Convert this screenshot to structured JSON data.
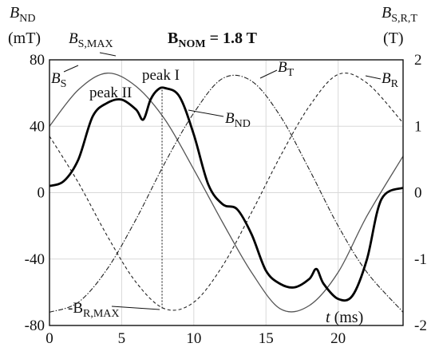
{
  "chart_data": {
    "type": "line",
    "title": {
      "main": "B",
      "sub": "NOM",
      "rest": " = 1.8 T"
    },
    "y_left_label": {
      "main": "B",
      "sub": "ND",
      "unit": "(mT)"
    },
    "y_right_label": {
      "main": "B",
      "sub": "S,R,T",
      "unit": "(T)"
    },
    "x_label": {
      "main": "t",
      "unit": " (ms)"
    },
    "x_range": [
      0,
      24.5
    ],
    "y_left_range": [
      -80,
      80
    ],
    "y_right_range": [
      -2,
      2
    ],
    "x_ticks": [
      0,
      5,
      10,
      15,
      20
    ],
    "y_left_ticks": [
      80,
      40,
      0,
      -40,
      -80
    ],
    "y_right_ticks": [
      2,
      1,
      0,
      -1,
      -2
    ],
    "grid": true,
    "series": [
      {
        "name": "B_S",
        "axis": "right",
        "style": "thin-solid",
        "x": [
          0,
          2,
          4,
          6,
          8,
          10,
          12,
          14,
          16,
          18,
          20,
          22,
          24.5
        ],
        "y": [
          1.0,
          1.55,
          1.8,
          1.6,
          1.1,
          0.35,
          -0.45,
          -1.2,
          -1.75,
          -1.7,
          -1.2,
          -0.35,
          0.55
        ]
      },
      {
        "name": "B_T",
        "axis": "right",
        "style": "dashed",
        "x": [
          0,
          2,
          4,
          6,
          8,
          10,
          12,
          14,
          16,
          18,
          20,
          22,
          24.5
        ],
        "y": [
          0.85,
          0.15,
          -0.65,
          -1.35,
          -1.75,
          -1.65,
          -1.1,
          -0.3,
          0.55,
          1.3,
          1.78,
          1.65,
          1.05
        ]
      },
      {
        "name": "B_R",
        "axis": "right",
        "style": "dash-dot",
        "x": [
          0,
          2,
          4,
          6,
          8,
          10,
          12,
          14,
          16,
          18,
          20,
          22,
          24.5
        ],
        "y": [
          -1.8,
          -1.65,
          -1.15,
          -0.4,
          0.45,
          1.2,
          1.72,
          1.68,
          1.15,
          0.35,
          -0.5,
          -1.2,
          -1.8
        ]
      },
      {
        "name": "B_ND",
        "axis": "left",
        "style": "thick-solid",
        "x": [
          0,
          1,
          2,
          3,
          4,
          5,
          6,
          6.5,
          7,
          7.5,
          8,
          9,
          10,
          11,
          12,
          13,
          14,
          15,
          16,
          17,
          18,
          18.5,
          19,
          20,
          21,
          22,
          23,
          24.5
        ],
        "y": [
          4,
          7,
          20,
          46,
          54,
          56,
          50,
          44,
          56,
          62,
          63,
          58,
          35,
          5,
          -7,
          -10,
          -25,
          -47,
          -55,
          -57,
          -52,
          -46,
          -55,
          -64,
          -62,
          -40,
          -4,
          3
        ]
      }
    ],
    "annotations": [
      {
        "id": "bs",
        "main": "B",
        "sub": "S"
      },
      {
        "id": "bsmax",
        "main": "B",
        "sub": "S,MAX"
      },
      {
        "id": "bt",
        "main": "B",
        "sub": "T"
      },
      {
        "id": "br",
        "main": "B",
        "sub": "R"
      },
      {
        "id": "bnd",
        "main": "B",
        "sub": "ND"
      },
      {
        "id": "peak1",
        "main": "peak I"
      },
      {
        "id": "peak2",
        "main": "peak II"
      },
      {
        "id": "brmax",
        "main": "-B",
        "sub": "R,MAX"
      }
    ],
    "peak_marker_x": 7.8
  }
}
